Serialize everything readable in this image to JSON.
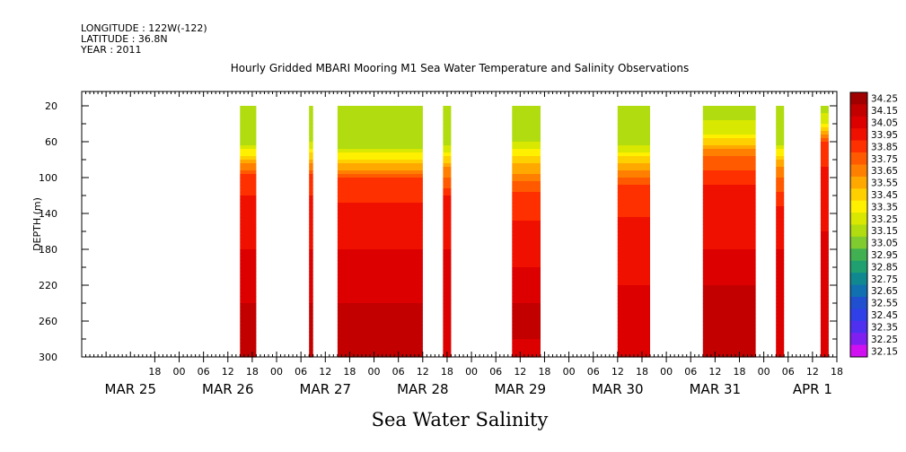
{
  "header": {
    "longitude": "LONGITUDE : 122W(-122)",
    "latitude": "LATITUDE : 36.8N",
    "year": "YEAR : 2011"
  },
  "chart_data": {
    "type": "heatmap",
    "title": "Hourly Gridded MBARI Mooring M1 Sea Water Temperature and Salinity Observations",
    "xlabel": "Sea Water Salinity",
    "ylabel": "DEPTH (m)",
    "x_range_hours": [
      0,
      186
    ],
    "y_range": [
      300,
      4
    ],
    "y_ticks": [
      20,
      60,
      100,
      140,
      180,
      220,
      260,
      300
    ],
    "x_hour_ticks": [
      {
        "h": 18,
        "label": "18"
      },
      {
        "h": 24,
        "label": "00"
      },
      {
        "h": 30,
        "label": "06"
      },
      {
        "h": 36,
        "label": "12"
      },
      {
        "h": 42,
        "label": "18"
      },
      {
        "h": 48,
        "label": "00"
      },
      {
        "h": 54,
        "label": "06"
      },
      {
        "h": 60,
        "label": "12"
      },
      {
        "h": 66,
        "label": "18"
      },
      {
        "h": 72,
        "label": "00"
      },
      {
        "h": 78,
        "label": "06"
      },
      {
        "h": 84,
        "label": "12"
      },
      {
        "h": 90,
        "label": "18"
      },
      {
        "h": 96,
        "label": "00"
      },
      {
        "h": 102,
        "label": "06"
      },
      {
        "h": 108,
        "label": "12"
      },
      {
        "h": 114,
        "label": "18"
      },
      {
        "h": 120,
        "label": "00"
      },
      {
        "h": 126,
        "label": "06"
      },
      {
        "h": 132,
        "label": "12"
      },
      {
        "h": 138,
        "label": "18"
      },
      {
        "h": 144,
        "label": "00"
      },
      {
        "h": 150,
        "label": "06"
      },
      {
        "h": 156,
        "label": "12"
      },
      {
        "h": 162,
        "label": "18"
      },
      {
        "h": 168,
        "label": "00"
      },
      {
        "h": 174,
        "label": "06"
      },
      {
        "h": 180,
        "label": "12"
      },
      {
        "h": 186,
        "label": "18"
      },
      {
        "h": 192,
        "label": "00"
      },
      {
        "h": 198,
        "label": "06"
      },
      {
        "h": 204,
        "label": "12"
      }
    ],
    "date_labels": [
      {
        "h": 12,
        "label": "MAR 25"
      },
      {
        "h": 36,
        "label": "MAR 26"
      },
      {
        "h": 60,
        "label": "MAR 27"
      },
      {
        "h": 84,
        "label": "MAR 28"
      },
      {
        "h": 108,
        "label": "MAR 29"
      },
      {
        "h": 132,
        "label": "MAR 30"
      },
      {
        "h": 156,
        "label": "MAR 31"
      },
      {
        "h": 180,
        "label": "APR  1"
      }
    ],
    "colorbar_levels": [
      "34.25",
      "34.15",
      "34.05",
      "33.95",
      "33.85",
      "33.75",
      "33.65",
      "33.55",
      "33.45",
      "33.35",
      "33.25",
      "33.15",
      "33.05",
      "32.95",
      "32.85",
      "32.75",
      "32.65",
      "32.55",
      "32.45",
      "32.35",
      "32.25",
      "32.15"
    ],
    "colorbar_colors": [
      "#a00000",
      "#c20000",
      "#dc0000",
      "#f01000",
      "#ff3000",
      "#ff5a00",
      "#ff8000",
      "#ffa800",
      "#ffd000",
      "#fff000",
      "#d8e800",
      "#b0dc10",
      "#80cc30",
      "#40b050",
      "#20a070",
      "#108890",
      "#1070b0",
      "#2050d0",
      "#3040e8",
      "#5030f0",
      "#8020f0",
      "#d010f0"
    ],
    "segments": [
      {
        "start": 39,
        "end": 43,
        "profile": [
          [
            20,
            33.1
          ],
          [
            60,
            33.15
          ],
          [
            80,
            33.5
          ],
          [
            100,
            33.85
          ],
          [
            140,
            33.95
          ],
          [
            180,
            34.0
          ],
          [
            220,
            34.05
          ],
          [
            260,
            34.15
          ],
          [
            300,
            34.1
          ]
        ]
      },
      {
        "start": 56,
        "end": 57,
        "profile": [
          [
            20,
            33.1
          ],
          [
            60,
            33.2
          ],
          [
            100,
            33.85
          ],
          [
            140,
            33.95
          ],
          [
            180,
            34.0
          ],
          [
            220,
            34.05
          ],
          [
            260,
            34.15
          ],
          [
            300,
            34.1
          ]
        ]
      },
      {
        "start": 63,
        "end": 84,
        "profile": [
          [
            20,
            33.1
          ],
          [
            60,
            33.1
          ],
          [
            80,
            33.4
          ],
          [
            100,
            33.8
          ],
          [
            140,
            33.95
          ],
          [
            180,
            34.0
          ],
          [
            220,
            34.05
          ],
          [
            260,
            34.15
          ],
          [
            300,
            34.1
          ]
        ]
      },
      {
        "start": 89,
        "end": 91,
        "profile": [
          [
            20,
            33.1
          ],
          [
            60,
            33.15
          ],
          [
            90,
            33.6
          ],
          [
            120,
            33.9
          ],
          [
            180,
            34.0
          ],
          [
            220,
            34.05
          ],
          [
            260,
            34.1
          ],
          [
            300,
            34.05
          ]
        ]
      },
      {
        "start": 106,
        "end": 113,
        "profile": [
          [
            20,
            33.1
          ],
          [
            60,
            33.2
          ],
          [
            90,
            33.55
          ],
          [
            120,
            33.85
          ],
          [
            180,
            33.95
          ],
          [
            220,
            34.05
          ],
          [
            260,
            34.15
          ],
          [
            300,
            34.05
          ]
        ]
      },
      {
        "start": 132,
        "end": 140,
        "profile": [
          [
            20,
            33.1
          ],
          [
            60,
            33.15
          ],
          [
            80,
            33.45
          ],
          [
            110,
            33.85
          ],
          [
            180,
            33.95
          ],
          [
            220,
            34.0
          ],
          [
            260,
            34.1
          ],
          [
            300,
            34.05
          ]
        ]
      },
      {
        "start": 153,
        "end": 166,
        "profile": [
          [
            20,
            33.1
          ],
          [
            50,
            33.3
          ],
          [
            80,
            33.75
          ],
          [
            120,
            33.95
          ],
          [
            180,
            34.0
          ],
          [
            220,
            34.1
          ],
          [
            260,
            34.2
          ],
          [
            300,
            34.1
          ]
        ]
      },
      {
        "start": 171,
        "end": 173,
        "profile": [
          [
            20,
            33.1
          ],
          [
            60,
            33.15
          ],
          [
            90,
            33.65
          ],
          [
            140,
            33.95
          ],
          [
            220,
            34.05
          ],
          [
            300,
            34.1
          ]
        ]
      },
      {
        "start": 182,
        "end": 184,
        "profile": [
          [
            20,
            33.1
          ],
          [
            40,
            33.3
          ],
          [
            60,
            33.8
          ],
          [
            100,
            33.95
          ],
          [
            220,
            34.05
          ],
          [
            300,
            34.1
          ]
        ]
      }
    ]
  }
}
